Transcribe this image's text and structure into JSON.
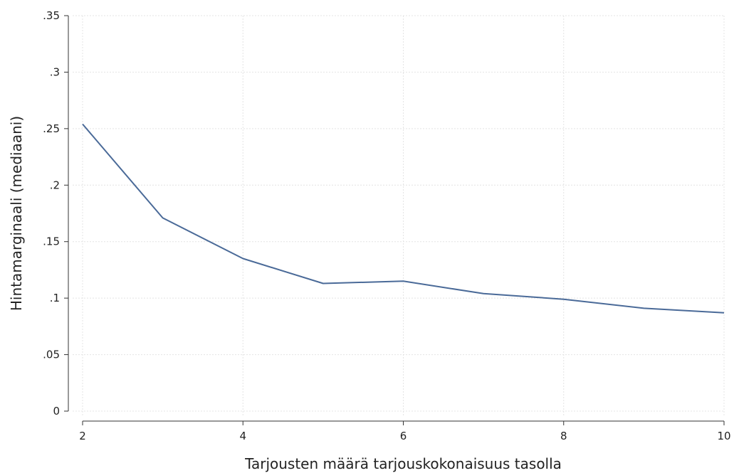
{
  "chart_data": {
    "type": "line",
    "title": "",
    "xlabel": "Tarjousten määrä tarjouskokonaisuus tasolla",
    "ylabel": "Hintamarginaali (mediaani)",
    "xlim": [
      2,
      10
    ],
    "ylim": [
      0,
      0.35
    ],
    "x_ticks": [
      2,
      4,
      6,
      8,
      10
    ],
    "x_tick_labels": [
      "2",
      "4",
      "6",
      "8",
      "10"
    ],
    "y_ticks": [
      0,
      0.05,
      0.1,
      0.15,
      0.2,
      0.25,
      0.3,
      0.35
    ],
    "y_tick_labels": [
      "0",
      ".05",
      ".1",
      ".15",
      ".2",
      ".25",
      ".3",
      ".35"
    ],
    "grid": true,
    "legend": "none",
    "series": [
      {
        "color": "#4a6a98",
        "x": [
          2,
          3,
          4,
          5,
          6,
          7,
          8,
          9,
          10
        ],
        "y": [
          0.254,
          0.171,
          0.135,
          0.113,
          0.115,
          0.104,
          0.099,
          0.091,
          0.087
        ]
      }
    ]
  }
}
